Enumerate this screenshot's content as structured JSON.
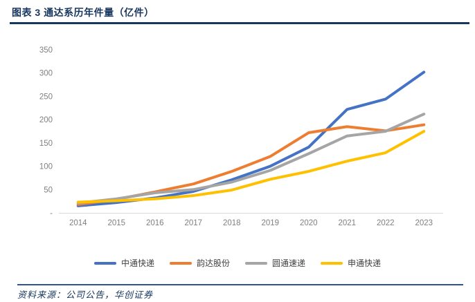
{
  "header": {
    "title": "图表 3  通达系历年件量（亿件）"
  },
  "footer": {
    "source_label": "资料来源：公司公告，华创证券"
  },
  "colors": {
    "title_navy": "#17365D",
    "footer_rule_blue": "#2E5395",
    "axis_line": "#D9D9D9",
    "axis_text": "#7F7F7F",
    "legend_text": "#404040"
  },
  "chart_data": {
    "type": "line",
    "title": "通达系历年件量（亿件）",
    "categories": [
      "2014",
      "2015",
      "2016",
      "2017",
      "2018",
      "2019",
      "2020",
      "2021",
      "2022",
      "2023"
    ],
    "series": [
      {
        "name": "中通快递",
        "color": "#4472C4",
        "values": [
          15,
          22,
          32,
          46,
          71,
          100,
          141,
          222,
          244,
          302
        ]
      },
      {
        "name": "韵达股份",
        "color": "#ED7D31",
        "values": [
          18,
          29,
          45,
          62,
          89,
          121,
          172,
          185,
          176,
          189
        ]
      },
      {
        "name": "圆通速递",
        "color": "#A5A5A5",
        "values": [
          21,
          30,
          43,
          50,
          66,
          91,
          127,
          165,
          175,
          212
        ]
      },
      {
        "name": "申通快递",
        "color": "#FFC000",
        "values": [
          23,
          26,
          30,
          37,
          49,
          72,
          89,
          111,
          129,
          175
        ]
      }
    ],
    "xlabel": "",
    "ylabel": "",
    "ylim": [
      0,
      350
    ],
    "yticks": [
      {
        "value": 0,
        "label": "-"
      },
      {
        "value": 50,
        "label": "50"
      },
      {
        "value": 100,
        "label": "100"
      },
      {
        "value": 150,
        "label": "150"
      },
      {
        "value": 200,
        "label": "200"
      },
      {
        "value": 250,
        "label": "250"
      },
      {
        "value": 300,
        "label": "300"
      },
      {
        "value": 350,
        "label": "350"
      }
    ],
    "grid": false,
    "legend_position": "bottom"
  }
}
